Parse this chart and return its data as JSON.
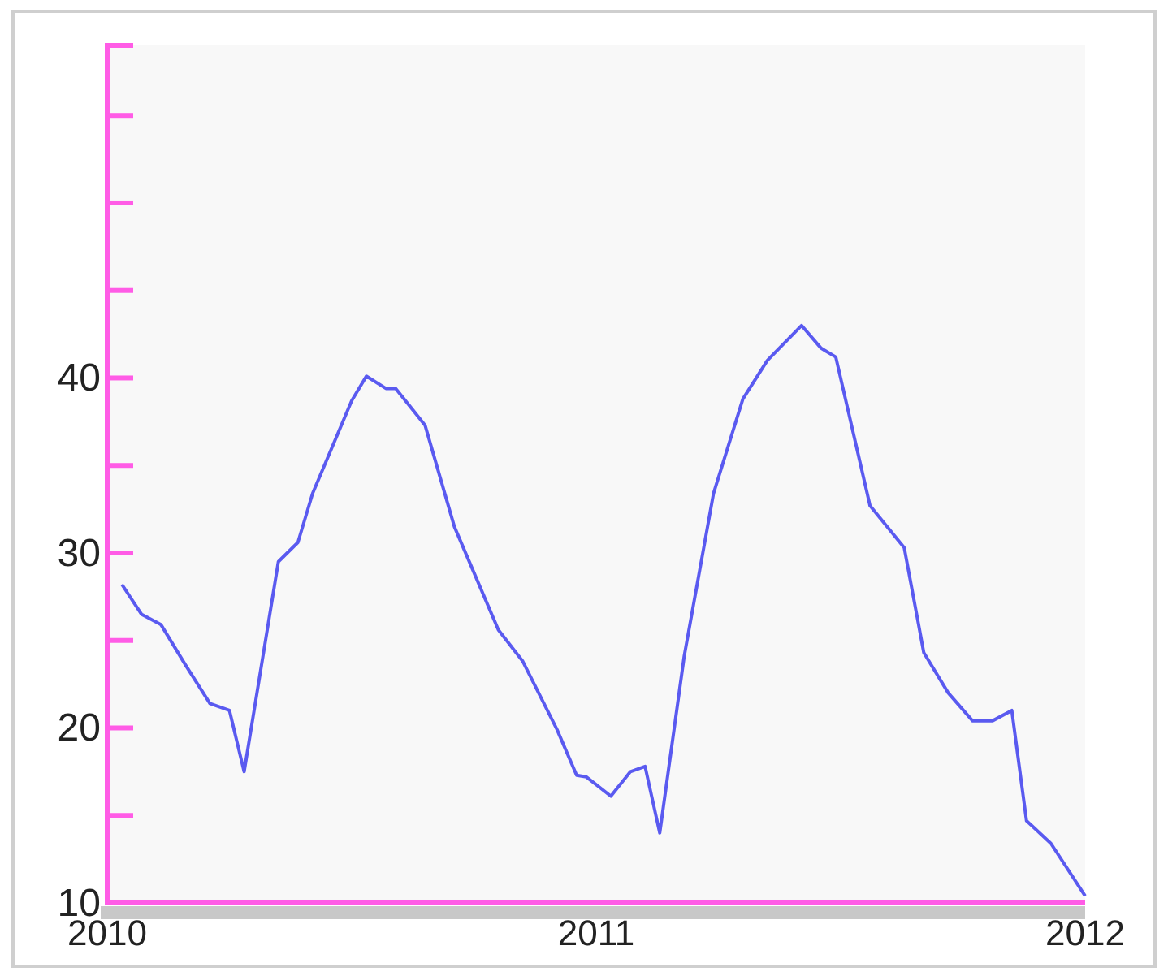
{
  "chart_data": {
    "type": "line",
    "x": [
      2010.03,
      2010.07,
      2010.11,
      2010.16,
      2010.21,
      2010.25,
      2010.28,
      2010.35,
      2010.39,
      2010.42,
      2010.5,
      2010.53,
      2010.57,
      2010.59,
      2010.65,
      2010.71,
      2010.8,
      2010.85,
      2010.92,
      2010.96,
      2010.98,
      2011.03,
      2011.07,
      2011.1,
      2011.13,
      2011.18,
      2011.24,
      2011.3,
      2011.35,
      2011.42,
      2011.46,
      2011.49,
      2011.56,
      2011.63,
      2011.67,
      2011.72,
      2011.77,
      2011.81,
      2011.85,
      2011.88,
      2011.93,
      2012.0
    ],
    "series": [
      {
        "color": "#5a5af0",
        "values": [
          28.2,
          26.5,
          25.9,
          23.6,
          21.4,
          21.0,
          17.5,
          29.5,
          30.6,
          33.4,
          38.7,
          40.1,
          39.4,
          39.4,
          37.3,
          31.5,
          25.6,
          23.8,
          19.9,
          17.3,
          17.2,
          16.1,
          17.5,
          17.8,
          14.0,
          24.1,
          33.4,
          38.8,
          41.0,
          43.0,
          41.7,
          41.2,
          32.7,
          30.3,
          24.3,
          22.0,
          20.4,
          20.4,
          21.0,
          14.7,
          13.4,
          10.4
        ]
      }
    ],
    "xlim": [
      2010,
      2012
    ],
    "xticks": [
      2010,
      2011,
      2012
    ],
    "ylim": [
      10,
      59
    ],
    "yticks": [
      10,
      {
        "value": 15,
        "label": null
      },
      20,
      {
        "value": 25,
        "label": null
      },
      30,
      {
        "value": 35,
        "label": null
      },
      40,
      {
        "value": 45,
        "label": null
      },
      {
        "value": 50,
        "label": null
      },
      {
        "value": 55,
        "label": null
      }
    ],
    "grid": false
  }
}
